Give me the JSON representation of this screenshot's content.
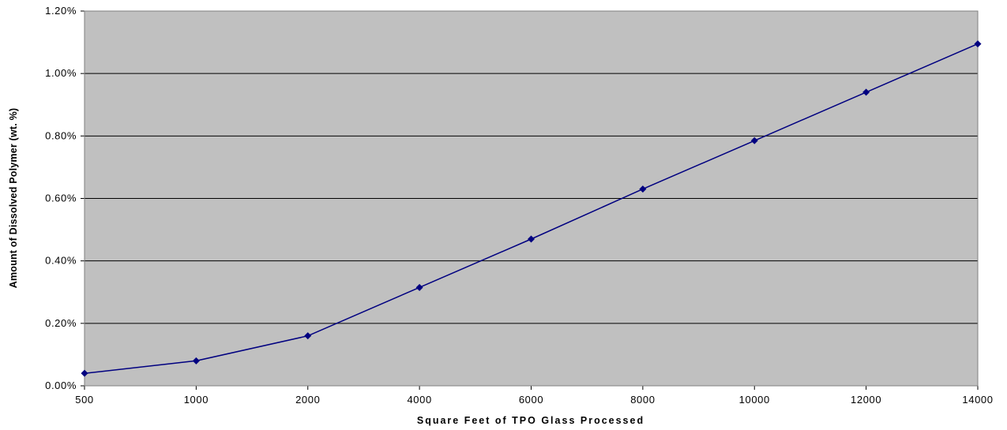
{
  "chart_data": {
    "type": "line",
    "title": "",
    "xlabel": "Square Feet of TPO Glass Processed",
    "ylabel": "Amount of Dissolved Polymer (wt. %)",
    "categories": [
      "500",
      "1000",
      "2000",
      "4000",
      "6000",
      "8000",
      "10000",
      "12000",
      "14000"
    ],
    "series": [
      {
        "values": [
          0.04,
          0.08,
          0.16,
          0.315,
          0.47,
          0.63,
          0.785,
          0.94,
          1.095
        ]
      }
    ],
    "y_unit": "%",
    "ylim": [
      0,
      1.2
    ],
    "y_ticks": [
      "0.00%",
      "0.20%",
      "0.40%",
      "0.60%",
      "0.80%",
      "1.00%",
      "1.20%"
    ],
    "y_tick_values": [
      0,
      0.2,
      0.4,
      0.6,
      0.8,
      1.0,
      1.2
    ],
    "grid": true,
    "legend": "none",
    "colors": {
      "plot_background": "#c0c0c0",
      "gridline": "#000000",
      "series_line": "#000080",
      "marker": "#000080"
    }
  }
}
